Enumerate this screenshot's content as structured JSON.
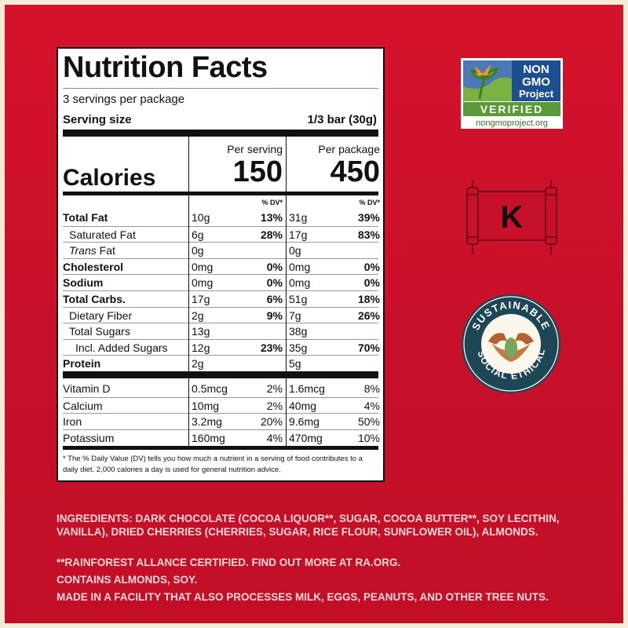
{
  "nutrition": {
    "title": "Nutrition Facts",
    "servings": "3 servings per package",
    "serving_size_label": "Serving size",
    "serving_size_value": "1/3 bar (30g)",
    "per_serving_label": "Per serving",
    "per_package_label": "Per package",
    "calories_label": "Calories",
    "calories_serving": "150",
    "calories_package": "450",
    "dv_header": "% DV*",
    "rows": [
      {
        "label": "Total Fat",
        "bold": true,
        "s_amt": "10g",
        "s_dv": "13%",
        "p_amt": "31g",
        "p_dv": "39%"
      },
      {
        "label": "Saturated Fat",
        "indent": 1,
        "s_amt": "6g",
        "s_dv": "28%",
        "p_amt": "17g",
        "p_dv": "83%"
      },
      {
        "label_italic": "Trans",
        "label": " Fat",
        "indent": 1,
        "s_amt": "0g",
        "s_dv": "",
        "p_amt": "0g",
        "p_dv": ""
      },
      {
        "label": "Cholesterol",
        "bold": true,
        "s_amt": "0mg",
        "s_dv": "0%",
        "p_amt": "0mg",
        "p_dv": "0%"
      },
      {
        "label": "Sodium",
        "bold": true,
        "s_amt": "0mg",
        "s_dv": "0%",
        "p_amt": "0mg",
        "p_dv": "0%"
      },
      {
        "label": "Total Carbs.",
        "bold": true,
        "s_amt": "17g",
        "s_dv": "6%",
        "p_amt": "51g",
        "p_dv": "18%"
      },
      {
        "label": "Dietary Fiber",
        "indent": 1,
        "s_amt": "2g",
        "s_dv": "9%",
        "p_amt": "7g",
        "p_dv": "26%"
      },
      {
        "label": "Total Sugars",
        "indent": 1,
        "s_amt": "13g",
        "s_dv": "",
        "p_amt": "38g",
        "p_dv": ""
      },
      {
        "label": "Incl. Added Sugars",
        "indent": 2,
        "s_amt": "12g",
        "s_dv": "23%",
        "p_amt": "35g",
        "p_dv": "70%"
      },
      {
        "label": "Protein",
        "bold": true,
        "s_amt": "2g",
        "s_dv": "",
        "p_amt": "5g",
        "p_dv": ""
      }
    ],
    "vitamins": [
      {
        "label": "Vitamin D",
        "s_amt": "0.5mcg",
        "s_dv": "2%",
        "p_amt": "1.6mcg",
        "p_dv": "8%"
      },
      {
        "label": "Calcium",
        "s_amt": "10mg",
        "s_dv": "2%",
        "p_amt": "40mg",
        "p_dv": "4%"
      },
      {
        "label": "Iron",
        "s_amt": "3.2mg",
        "s_dv": "20%",
        "p_amt": "9.6mg",
        "p_dv": "50%"
      },
      {
        "label": "Potassium",
        "s_amt": "160mg",
        "s_dv": "4%",
        "p_amt": "470mg",
        "p_dv": "10%"
      }
    ],
    "footnote": "* The % Daily Value (DV) tells you how much a nutrient in a serving of food contributes to a daily diet. 2,000 calories a day is used for general nutrition advice."
  },
  "logos": {
    "nongmo": {
      "line1": "NON",
      "line2": "GMO",
      "line3": "Project",
      "verified": "VERIFIED",
      "url": "nongmoproject.org"
    },
    "kosher": {
      "letter": "K"
    },
    "sustainable": {
      "top": "SUSTAINABLE",
      "left": "SOCIAL",
      "right": "ETHICAL"
    }
  },
  "ingredients": {
    "line1": "INGREDIENTS: DARK CHOCOLATE (COCOA LIQUOR**, SUGAR, COCOA BUTTER**, SOY LECITHIN, VANILLA), DRIED CHERRIES (CHERRIES, SUGAR, RICE FLOUR, SUNFLOWER OIL), ALMONDS.",
    "line2": "**RAINFOREST ALLANCE CERTIFIED. FIND OUT MORE AT RA.ORG.",
    "line3": "CONTAINS ALMONDS, SOY.",
    "line4": "MADE IN A FACILITY THAT ALSO PROCESSES MILK, EGGS, PEANUTS, AND OTHER TREE NUTS."
  },
  "colors": {
    "background": "#c8102a",
    "label": "#ffffff",
    "ingredients_text": "#f8d9d9"
  }
}
